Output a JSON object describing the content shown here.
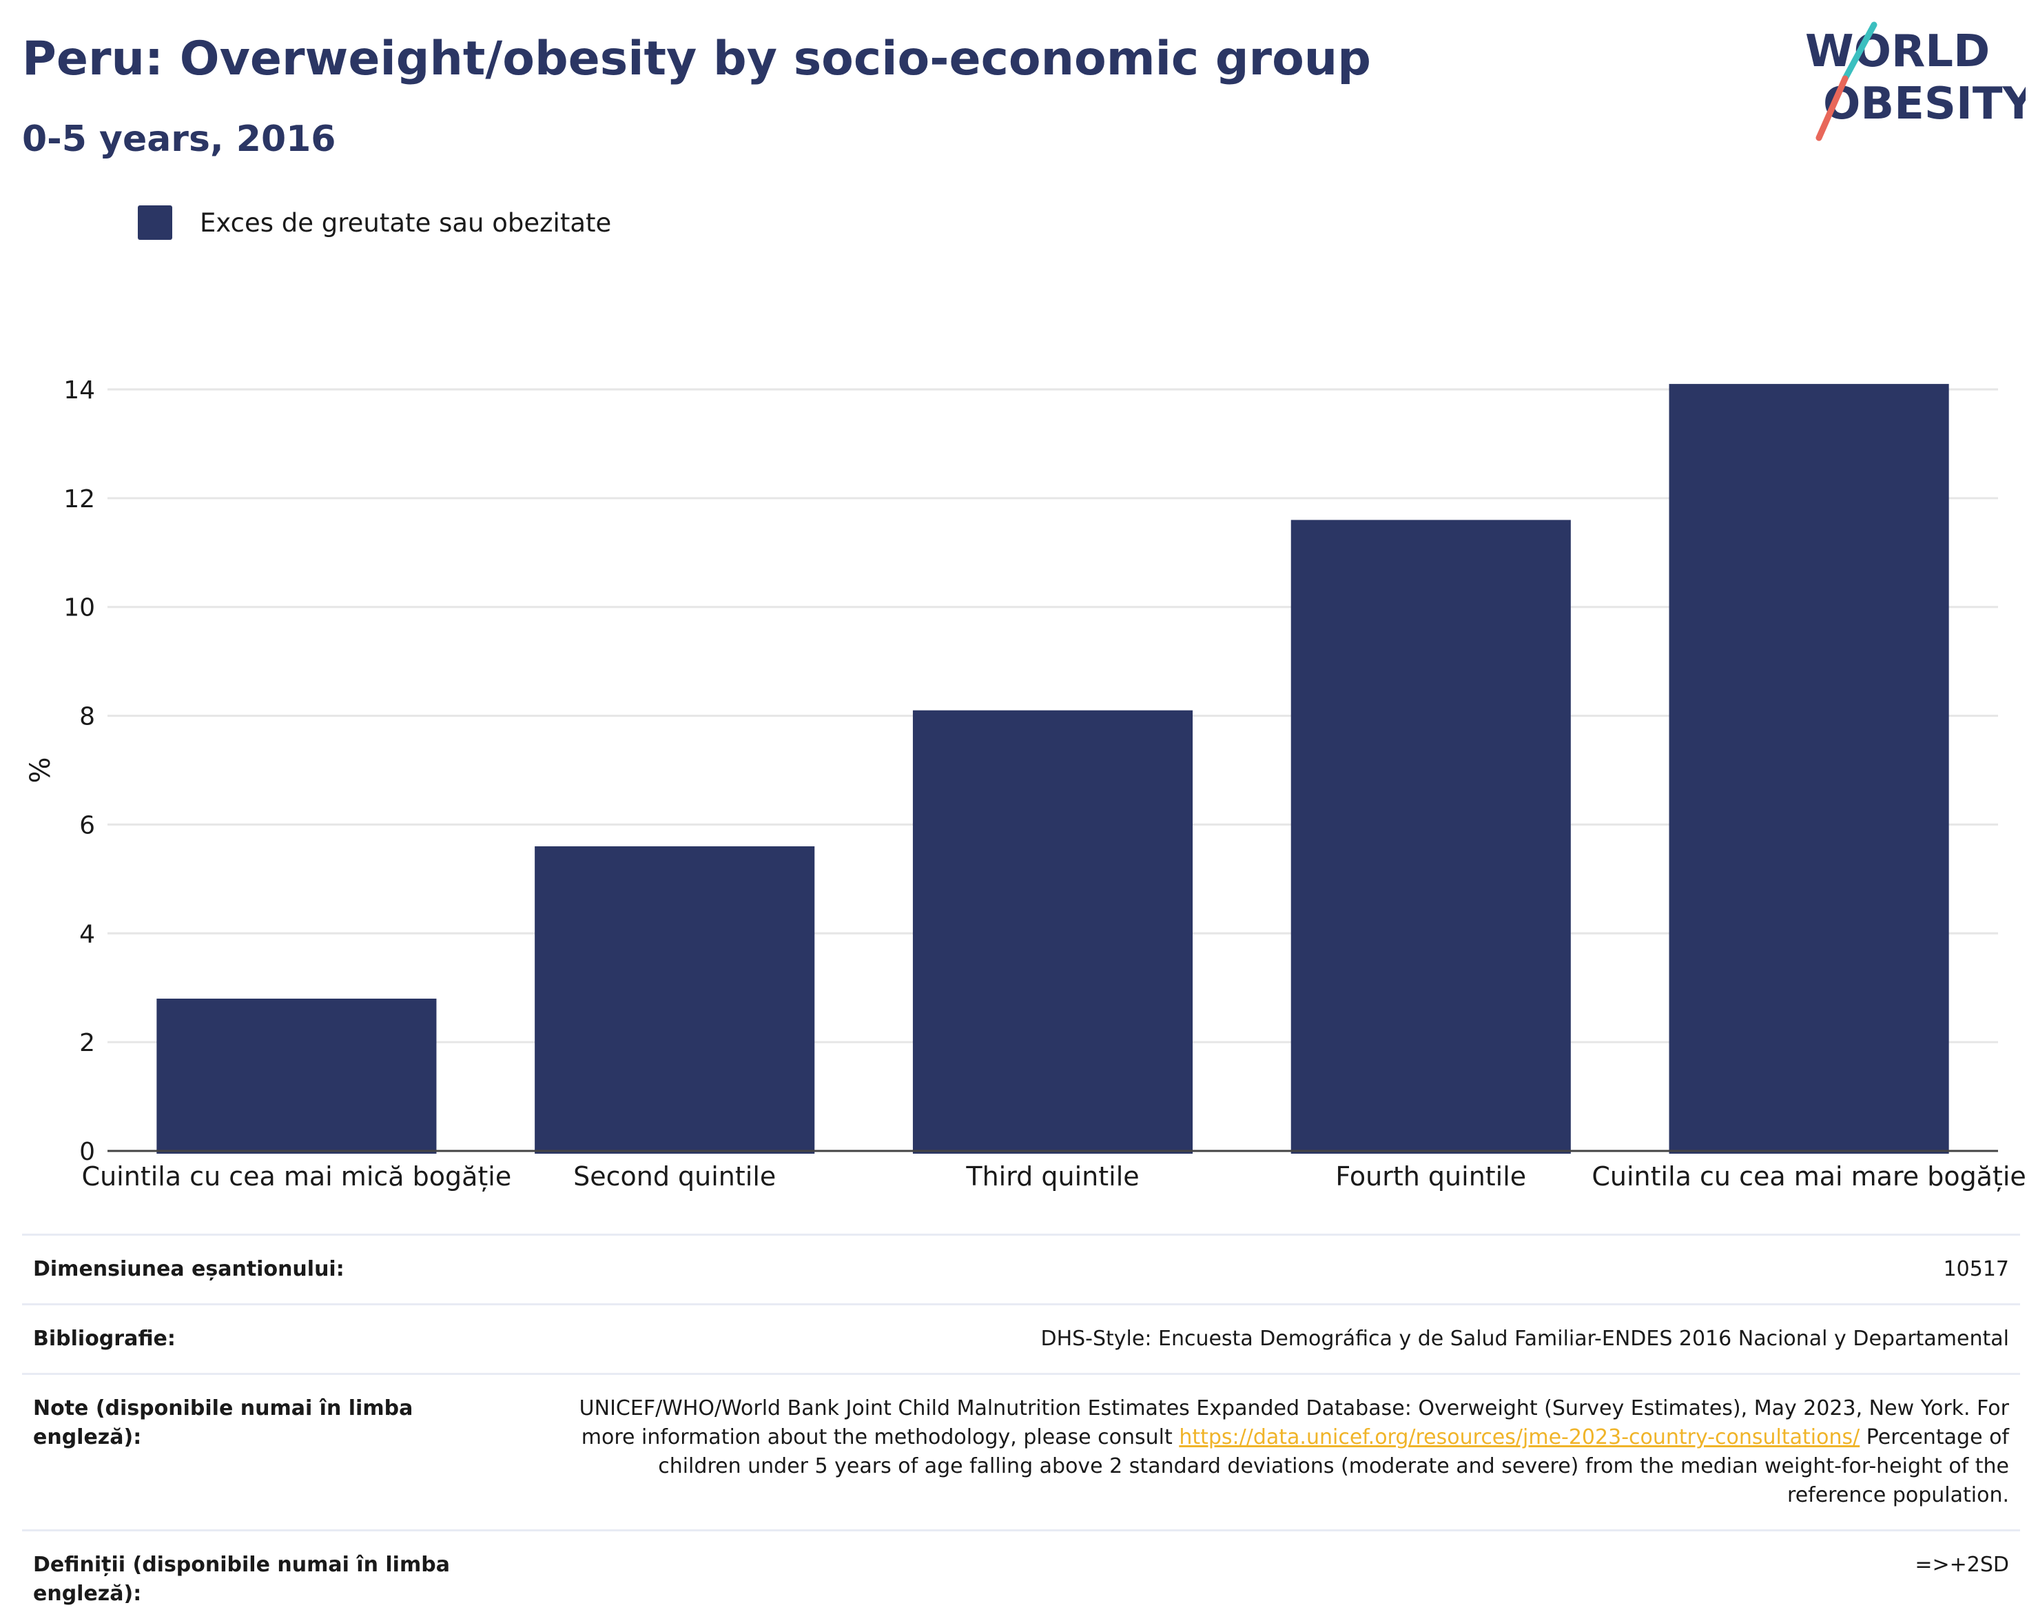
{
  "header": {
    "title": "Peru: Overweight/obesity by socio-economic group",
    "subtitle": "0-5 years, 2016"
  },
  "logo": {
    "line1": "WORLD",
    "line2": "OBESITY"
  },
  "colors": {
    "bar": "#2b3664",
    "title": "#2b3664",
    "grid": "#e6e6e6",
    "link": "#f0b429",
    "logo_teal": "#3bbfbf",
    "logo_coral": "#e8675a"
  },
  "legend": {
    "label": "Exces de greutate sau obezitate"
  },
  "chart_data": {
    "type": "bar",
    "categories": [
      "Cuintila cu cea mai mică bogăție",
      "Second quintile",
      "Third quintile",
      "Fourth quintile",
      "Cuintila cu cea mai mare bogăție"
    ],
    "series": [
      {
        "name": "Exces de greutate sau obezitate",
        "values": [
          2.8,
          5.6,
          8.1,
          11.6,
          14.1
        ]
      }
    ],
    "ylabel": "%",
    "ylim": [
      0,
      14
    ],
    "yticks": [
      0,
      2,
      4,
      6,
      8,
      10,
      12,
      14
    ],
    "grid": true,
    "legend_position": "top-left"
  },
  "info": {
    "sample_label": "Dimensiunea eșantionului:",
    "sample_value": "10517",
    "bibliography_label": "Bibliografie:",
    "bibliography_value": "DHS-Style: Encuesta Demográfica y de Salud Familiar-ENDES 2016 Nacional y Departamental",
    "notes_label": "Note (disponibile numai în limba engleză):",
    "notes_text_1": "UNICEF/WHO/World Bank Joint Child Malnutrition Estimates Expanded Database: Overweight (Survey Estimates), May 2023, New York. For more information about the methodology, please consult",
    "notes_link": "https://data.unicef.org/resources/jme-2023-country-consultations/",
    "notes_text_2": "Percentage of children under 5 years of age falling above 2 standard deviations (moderate and severe) from the median weight-for-height of the reference population.",
    "definitions_label": "Definiții (disponibile numai în limba engleză):",
    "definitions_value": "=>+2SD"
  }
}
